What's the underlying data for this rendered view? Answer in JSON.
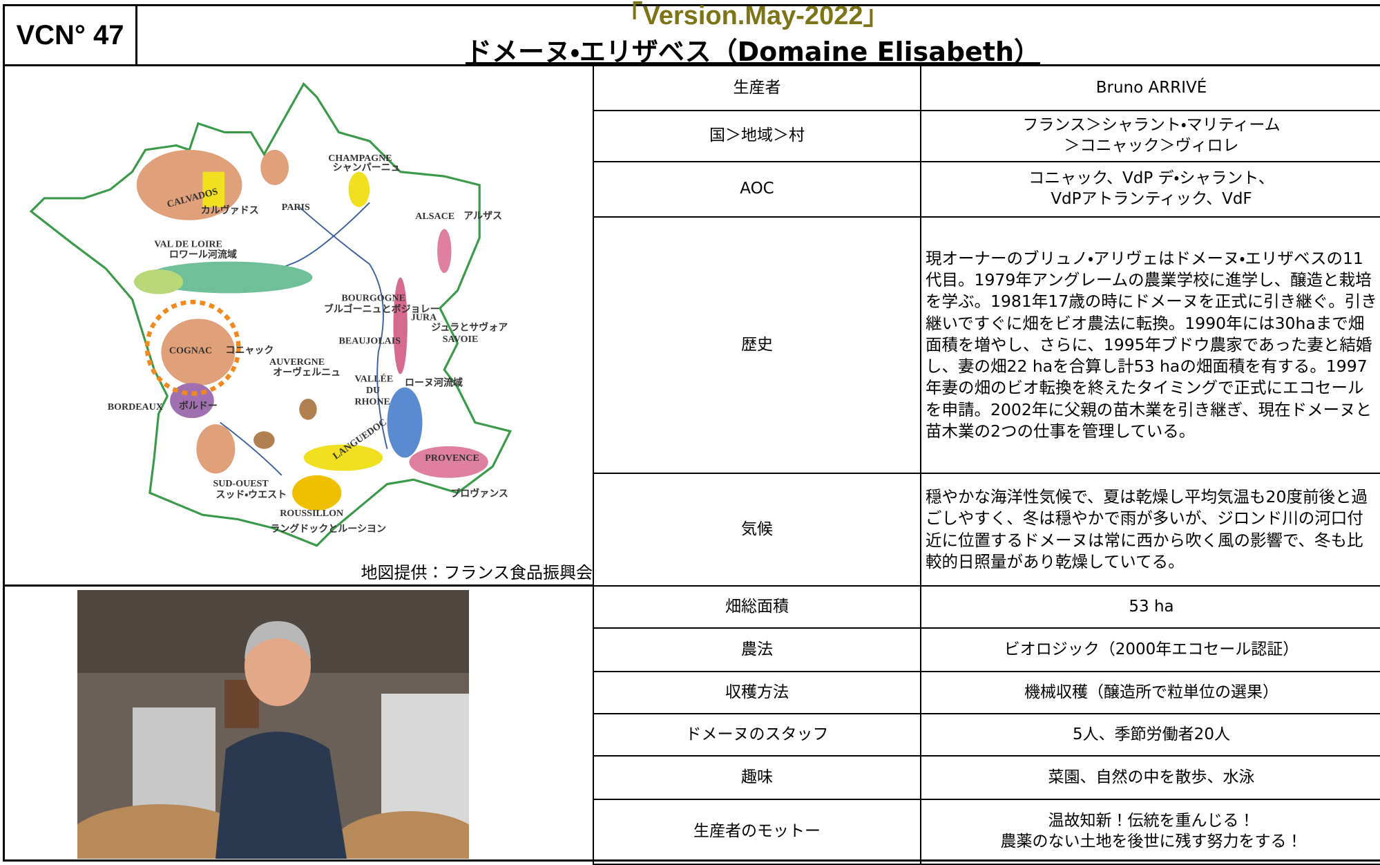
{
  "header": {
    "id": "VCN° 47",
    "version": "「Version.May-2022」",
    "title": "ドメーヌ・エリザベス（Domaine Elisabeth）"
  },
  "map": {
    "labels": [
      "CHAMPAGNE",
      "シャンパーニュ",
      "CALVADOS",
      "カルヴァドス",
      "PARIS",
      "ALSACE",
      "アルザス",
      "VAL DE LOIRE",
      "ロワール河流域",
      "BOURGOGNE",
      "ブルゴーニュとボジョレー",
      "JURA",
      "ジュラとサヴォア",
      "SAVOIE",
      "BEAUJOLAIS",
      "COGNAC",
      "コニャック",
      "AUVERGNE",
      "オーヴェルニュ",
      "VALLÉE",
      "DU",
      "RHONE",
      "ローヌ河流域",
      "BORDEAUX",
      "ボルドー",
      "LANGUEDOC",
      "PROVENCE",
      "プロヴァンス",
      "SUD-OUEST",
      "スッド・ウエスト",
      "ROUSSILLON",
      "ラングドックとルーシヨン"
    ],
    "credit": "地図提供：フランス食品振興会"
  },
  "table": {
    "rows": [
      [
        "生産者",
        "Bruno ARRIVÉ"
      ],
      [
        "国＞地域＞村",
        "フランス＞シャラント・マリティーム\n＞コニャック＞ヴィロレ"
      ],
      [
        "AOC",
        "コニャック、VdP デ・シャラント、\nVdPアトランティック、VdF"
      ],
      [
        "歴史",
        "現オーナーのブリュノ・アリヴェはドメーヌ・エリザベスの11代目。1979年アングレームの農業学校に進学し、醸造と栽培を学ぶ。1981年17歳の時にドメーヌを正式に引き継ぐ。引き継いですぐに畑をビオ農法に転換。1990年には30haまで畑面積を増やし、さらに、1995年ブドウ農家であった妻と結婚し、妻の畑22 haを合算し計53 haの畑面積を有する。1997年妻の畑のビオ転換を終えたタイミングで正式にエコセールを申請。2002年に父親の苗木業を引き継ぎ、現在ドメーヌと苗木業の2つの仕事を管理している。"
      ],
      [
        "気候",
        "穏やかな海洋性気候で、夏は乾燥し平均気温も20度前後と過ごしやすく、冬は穏やかで雨が多いが、ジロンド川の河口付近に位置するドメーヌは常に西から吹く風の影響で、冬も比較的日照量があり乾燥していてる。"
      ],
      [
        "畑総面積",
        "53 ha"
      ],
      [
        "農法",
        "ビオロジック（2000年エコセール認証）"
      ],
      [
        "収穫方法",
        "機械収穫（醸造所で粒単位の選果）"
      ],
      [
        "ドメーヌのスタッフ",
        "5人、季節労働者20人"
      ],
      [
        "趣味",
        "菜園、自然の中を散歩、水泳"
      ],
      [
        "生産者のモットー",
        "温故知新！伝統を重んじる！\n農薬のない土地を後世に残す努力をする！"
      ]
    ]
  }
}
